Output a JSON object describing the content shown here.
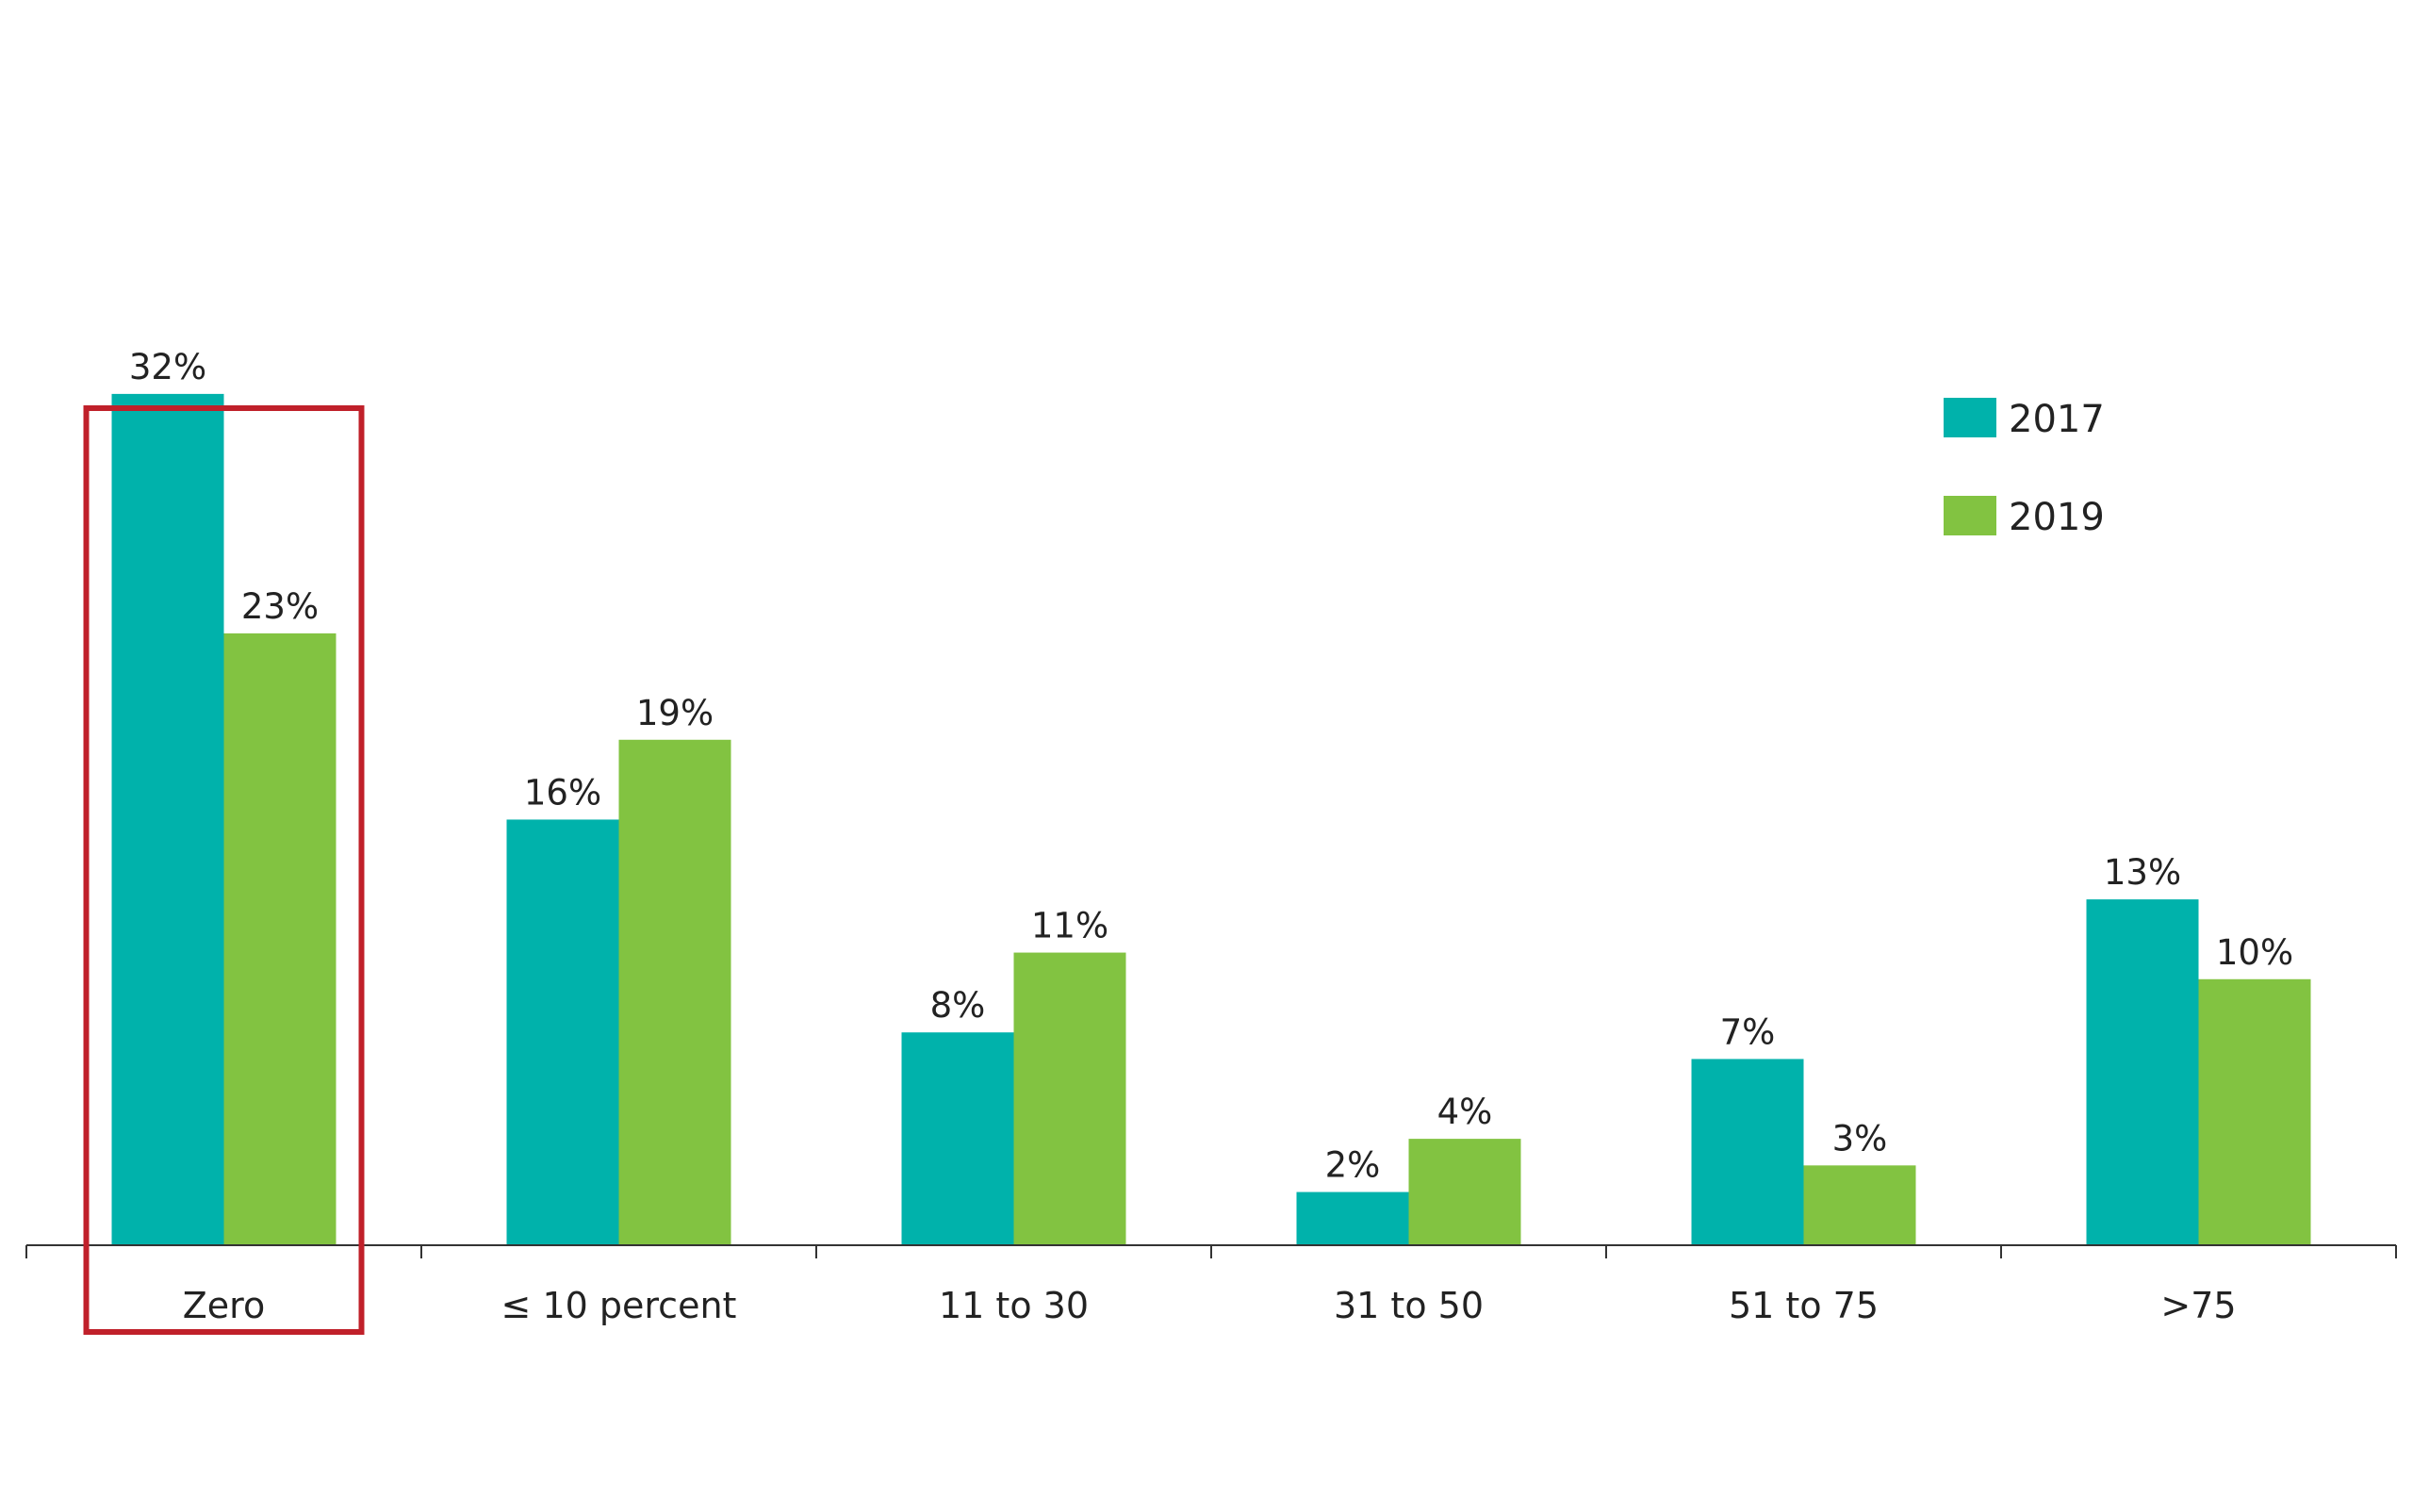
{
  "chart_data": {
    "type": "bar",
    "categories": [
      "Zero",
      "≤ 10 percent",
      "11 to 30",
      "31 to 50",
      "51 to 75",
      ">75"
    ],
    "series": [
      {
        "name": "2017",
        "values": [
          32,
          16,
          8,
          2,
          7,
          13
        ],
        "labels": [
          "32%",
          "16%",
          "8%",
          "2%",
          "7%",
          "13%"
        ],
        "color": "#00b2ab"
      },
      {
        "name": "2019",
        "values": [
          23,
          19,
          11,
          4,
          3,
          10
        ],
        "labels": [
          "23%",
          "19%",
          "11%",
          "4%",
          "3%",
          "10%"
        ],
        "color": "#82c341"
      }
    ],
    "ylim": [
      0,
      36
    ],
    "grid": false,
    "legend_position": "top-right",
    "highlight": {
      "category": "Zero",
      "color": "#c0202a"
    }
  }
}
